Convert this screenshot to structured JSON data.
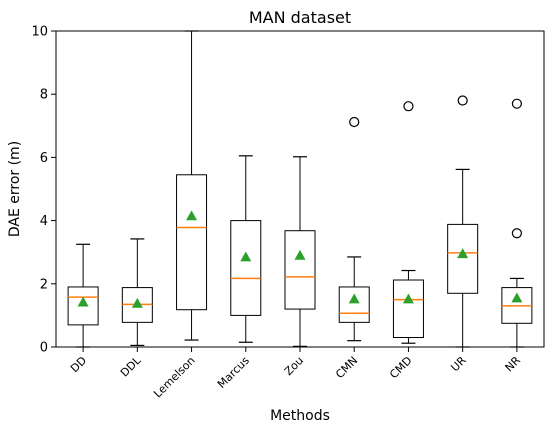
{
  "chart_data": {
    "type": "box",
    "title": "MAN dataset",
    "xlabel": "Methods",
    "ylabel": "DAE error (m)",
    "ylim": [
      0,
      10
    ],
    "yticks": [
      0,
      2,
      4,
      6,
      8,
      10
    ],
    "grid": false,
    "colors": {
      "box": "#000000",
      "median": "#ff7f0e",
      "mean": "#2ca02c",
      "flier": "#000000"
    },
    "categories": [
      "DD",
      "DDL",
      "Lemelson",
      "Marcus",
      "Zou",
      "CMN",
      "CMD",
      "UR",
      "NR"
    ],
    "boxes": [
      {
        "whislo": 0.0,
        "q1": 0.7,
        "med": 1.58,
        "q3": 1.9,
        "whishi": 3.25,
        "mean": 1.42,
        "fliers": []
      },
      {
        "whislo": 0.05,
        "q1": 0.78,
        "med": 1.35,
        "q3": 1.88,
        "whishi": 3.42,
        "mean": 1.38,
        "fliers": []
      },
      {
        "whislo": 0.22,
        "q1": 1.18,
        "med": 3.78,
        "q3": 5.45,
        "whishi": 10.0,
        "mean": 4.15,
        "fliers": []
      },
      {
        "whislo": 0.15,
        "q1": 1.0,
        "med": 2.17,
        "q3": 4.0,
        "whishi": 6.05,
        "mean": 2.85,
        "fliers": []
      },
      {
        "whislo": 0.02,
        "q1": 1.2,
        "med": 2.22,
        "q3": 3.68,
        "whishi": 6.02,
        "mean": 2.9,
        "fliers": []
      },
      {
        "whislo": 0.2,
        "q1": 0.78,
        "med": 1.07,
        "q3": 1.9,
        "whishi": 2.85,
        "mean": 1.52,
        "fliers": [
          7.12
        ]
      },
      {
        "whislo": 0.12,
        "q1": 0.3,
        "med": 1.5,
        "q3": 2.12,
        "whishi": 2.42,
        "mean": 1.52,
        "fliers": [
          7.62
        ]
      },
      {
        "whislo": 0.0,
        "q1": 1.7,
        "med": 2.98,
        "q3": 3.88,
        "whishi": 5.62,
        "mean": 2.95,
        "fliers": [
          7.8
        ]
      },
      {
        "whislo": 0.0,
        "q1": 0.75,
        "med": 1.3,
        "q3": 1.88,
        "whishi": 2.17,
        "mean": 1.55,
        "fliers": [
          3.6,
          7.7
        ]
      }
    ]
  }
}
